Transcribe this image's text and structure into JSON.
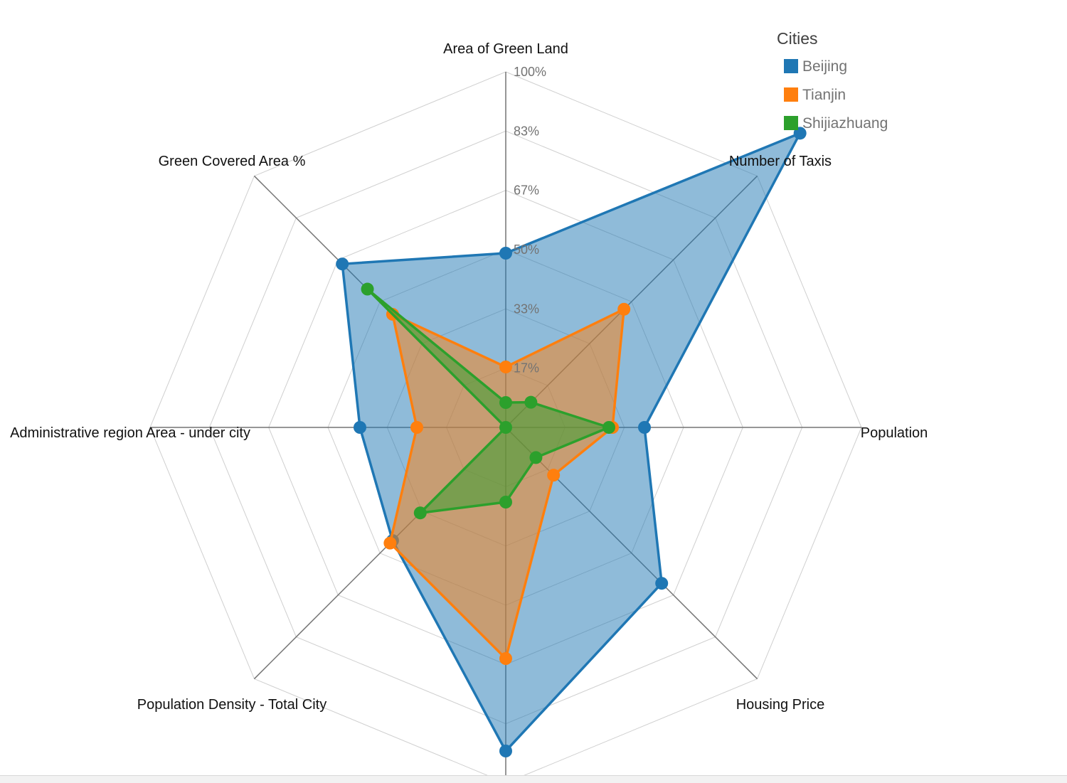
{
  "chart_data": {
    "type": "radar",
    "axes": [
      "Area of Green Land",
      "Number of Taxis",
      "Population",
      "Housing Price",
      "",
      "Population Density - Total City",
      "Administrative region Area - under city",
      "Green Covered Area %"
    ],
    "levels": [
      "17%",
      "33%",
      "50%",
      "67%",
      "83%",
      "100%"
    ],
    "legend": {
      "title": "Cities",
      "position": "top-right"
    },
    "series": [
      {
        "name": "Beijing",
        "color": "#1f77b4",
        "values": [
          0.49,
          1.17,
          0.39,
          0.62,
          0.91,
          0.45,
          0.41,
          0.65
        ]
      },
      {
        "name": "Tianjin",
        "color": "#ff7f0e",
        "values": [
          0.17,
          0.47,
          0.3,
          0.19,
          0.65,
          0.46,
          0.25,
          0.45
        ]
      },
      {
        "name": "Shijiazhuang",
        "color": "#2ca02c",
        "values": [
          0.07,
          0.1,
          0.29,
          0.12,
          0.21,
          0.34,
          0.0,
          0.55
        ]
      }
    ]
  }
}
